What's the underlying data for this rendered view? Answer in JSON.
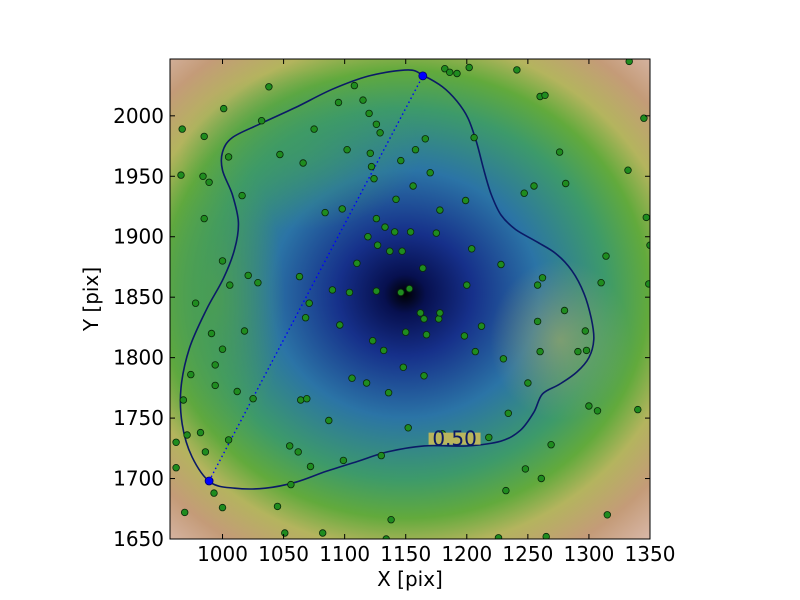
{
  "chart_data": {
    "type": "scatter",
    "title": "",
    "xlabel": "X [pix]",
    "ylabel": "Y [pix]",
    "xlim": [
      957,
      1350
    ],
    "ylim": [
      1650,
      2047
    ],
    "grid": false,
    "xticks": [
      1000,
      1050,
      1100,
      1150,
      1200,
      1250,
      1300,
      1350
    ],
    "yticks": [
      1650,
      1700,
      1750,
      1800,
      1850,
      1900,
      1950,
      2000
    ],
    "xtick_labels": [
      "1000",
      "1050",
      "1100",
      "1150",
      "1200",
      "1250",
      "1300",
      "1350"
    ],
    "ytick_labels": [
      "1650",
      "1700",
      "1750",
      "1800",
      "1850",
      "1900",
      "1950",
      "2000"
    ],
    "background": {
      "kind": "density-heatmap",
      "peak": [
        1152,
        1850
      ],
      "colormap": [
        "#000000",
        "#0a1a6e",
        "#2a6fa8",
        "#3d9a6a",
        "#5aa83a",
        "#b8b460",
        "#c49a7a",
        "#f6ecec"
      ]
    },
    "contour": {
      "level_label": "0.50",
      "color": "#0b1a66",
      "label_position": [
        1190,
        1733
      ],
      "points": [
        [
          1152,
          2038
        ],
        [
          1165,
          2033
        ],
        [
          1180,
          2024
        ],
        [
          1192,
          2012
        ],
        [
          1201,
          1998
        ],
        [
          1208,
          1978
        ],
        [
          1214,
          1955
        ],
        [
          1220,
          1935
        ],
        [
          1228,
          1918
        ],
        [
          1240,
          1906
        ],
        [
          1257,
          1896
        ],
        [
          1273,
          1886
        ],
        [
          1286,
          1872
        ],
        [
          1296,
          1853
        ],
        [
          1302,
          1832
        ],
        [
          1304,
          1815
        ],
        [
          1300,
          1800
        ],
        [
          1290,
          1788
        ],
        [
          1276,
          1778
        ],
        [
          1262,
          1770
        ],
        [
          1255,
          1755
        ],
        [
          1244,
          1740
        ],
        [
          1228,
          1731
        ],
        [
          1200,
          1727
        ],
        [
          1165,
          1727
        ],
        [
          1135,
          1722
        ],
        [
          1110,
          1714
        ],
        [
          1085,
          1706
        ],
        [
          1060,
          1697
        ],
        [
          1035,
          1692
        ],
        [
          1010,
          1692
        ],
        [
          990,
          1697
        ],
        [
          975,
          1718
        ],
        [
          967,
          1745
        ],
        [
          966,
          1775
        ],
        [
          973,
          1808
        ],
        [
          987,
          1840
        ],
        [
          1001,
          1866
        ],
        [
          1010,
          1890
        ],
        [
          1013,
          1912
        ],
        [
          1008,
          1935
        ],
        [
          1000,
          1955
        ],
        [
          1000,
          1970
        ],
        [
          1008,
          1982
        ],
        [
          1030,
          1993
        ],
        [
          1060,
          2007
        ],
        [
          1090,
          2022
        ],
        [
          1120,
          2033
        ]
      ]
    },
    "segment": {
      "style": "dotted",
      "color": "#0000ff",
      "endpoints": [
        [
          989,
          1698
        ],
        [
          1164,
          2033
        ]
      ]
    },
    "series": [
      {
        "values": [
          [
            962,
            1709
          ],
          [
            962,
            1730
          ],
          [
            966,
            1951
          ],
          [
            967,
            1989
          ],
          [
            968,
            1765
          ],
          [
            969,
            1672
          ],
          [
            971,
            1736
          ],
          [
            974,
            1786
          ],
          [
            978,
            1845
          ],
          [
            982,
            1738
          ],
          [
            984,
            1950
          ],
          [
            985,
            1915
          ],
          [
            985,
            1983
          ],
          [
            986,
            1722
          ],
          [
            989,
            1945
          ],
          [
            991,
            1820
          ],
          [
            993,
            1688
          ],
          [
            994,
            1794
          ],
          [
            994,
            1777
          ],
          [
            1000,
            1880
          ],
          [
            1000,
            1807
          ],
          [
            1000,
            1676
          ],
          [
            1001,
            2006
          ],
          [
            1005,
            1732
          ],
          [
            1005,
            1966
          ],
          [
            1006,
            1860
          ],
          [
            1012,
            1772
          ],
          [
            1016,
            1934
          ],
          [
            1018,
            1822
          ],
          [
            1021,
            1868
          ],
          [
            1025,
            1766
          ],
          [
            1029,
            1862
          ],
          [
            1032,
            1996
          ],
          [
            1038,
            2024
          ],
          [
            1045,
            1677
          ],
          [
            1047,
            1968
          ],
          [
            1051,
            1655
          ],
          [
            1055,
            1727
          ],
          [
            1056,
            1695
          ],
          [
            1062,
            1722
          ],
          [
            1063,
            1867
          ],
          [
            1064,
            1765
          ],
          [
            1066,
            1961
          ],
          [
            1068,
            1833
          ],
          [
            1069,
            1766
          ],
          [
            1071,
            1845
          ],
          [
            1072,
            1710
          ],
          [
            1075,
            1989
          ],
          [
            1082,
            1655
          ],
          [
            1084,
            1920
          ],
          [
            1087,
            1748
          ],
          [
            1090,
            1856
          ],
          [
            1095,
            2011
          ],
          [
            1096,
            1827
          ],
          [
            1098,
            1923
          ],
          [
            1099,
            1715
          ],
          [
            1102,
            1972
          ],
          [
            1104,
            1854
          ],
          [
            1106,
            1783
          ],
          [
            1108,
            2025
          ],
          [
            1110,
            1878
          ],
          [
            1115,
            2013
          ],
          [
            1118,
            1779
          ],
          [
            1119,
            1900
          ],
          [
            1120,
            2002
          ],
          [
            1121,
            1969
          ],
          [
            1122,
            1958
          ],
          [
            1123,
            1814
          ],
          [
            1124,
            1948
          ],
          [
            1126,
            1993
          ],
          [
            1126,
            1855
          ],
          [
            1126,
            1915
          ],
          [
            1127,
            1893
          ],
          [
            1129,
            1986
          ],
          [
            1130,
            1719
          ],
          [
            1132,
            1806
          ],
          [
            1133,
            1908
          ],
          [
            1134,
            1650
          ],
          [
            1136,
            1771
          ],
          [
            1137,
            1888
          ],
          [
            1138,
            1666
          ],
          [
            1141,
            1904
          ],
          [
            1142,
            1931
          ],
          [
            1146,
            1963
          ],
          [
            1146,
            1854
          ],
          [
            1147,
            1888
          ],
          [
            1148,
            1792
          ],
          [
            1150,
            1821
          ],
          [
            1152,
            1742
          ],
          [
            1153,
            1857
          ],
          [
            1154,
            1904
          ],
          [
            1156,
            1942
          ],
          [
            1158,
            1972
          ],
          [
            1162,
            1837
          ],
          [
            1164,
            1874
          ],
          [
            1165,
            1832
          ],
          [
            1165,
            1785
          ],
          [
            1166,
            1981
          ],
          [
            1167,
            1819
          ],
          [
            1170,
            1953
          ],
          [
            1175,
            1903
          ],
          [
            1177,
            1832
          ],
          [
            1178,
            1837
          ],
          [
            1178,
            1922
          ],
          [
            1180,
            1737
          ],
          [
            1182,
            2039
          ],
          [
            1186,
            2036
          ],
          [
            1192,
            2035
          ],
          [
            1198,
            1818
          ],
          [
            1199,
            1930
          ],
          [
            1200,
            1860
          ],
          [
            1202,
            2040
          ],
          [
            1204,
            1890
          ],
          [
            1206,
            1982
          ],
          [
            1207,
            1805
          ],
          [
            1212,
            1826
          ],
          [
            1218,
            1734
          ],
          [
            1226,
            1651
          ],
          [
            1228,
            1877
          ],
          [
            1230,
            1799
          ],
          [
            1232,
            1690
          ],
          [
            1234,
            1754
          ],
          [
            1241,
            2038
          ],
          [
            1247,
            1936
          ],
          [
            1248,
            1708
          ],
          [
            1250,
            1779
          ],
          [
            1255,
            1942
          ],
          [
            1258,
            1860
          ],
          [
            1258,
            1830
          ],
          [
            1260,
            2016
          ],
          [
            1260,
            1805
          ],
          [
            1261,
            1700
          ],
          [
            1262,
            1866
          ],
          [
            1264,
            2017
          ],
          [
            1265,
            1652
          ],
          [
            1269,
            1728
          ],
          [
            1276,
            1970
          ],
          [
            1280,
            1839
          ],
          [
            1281,
            1944
          ],
          [
            1291,
            1805
          ],
          [
            1297,
            1822
          ],
          [
            1298,
            1806
          ],
          [
            1300,
            1760
          ],
          [
            1307,
            1756
          ],
          [
            1310,
            1862
          ],
          [
            1314,
            1884
          ],
          [
            1315,
            1670
          ],
          [
            1332,
            1955
          ],
          [
            1333,
            2045
          ],
          [
            1340,
            1757
          ],
          [
            1345,
            1998
          ],
          [
            1347,
            1916
          ],
          [
            1349,
            1861
          ],
          [
            1350,
            1893
          ]
        ]
      }
    ]
  }
}
